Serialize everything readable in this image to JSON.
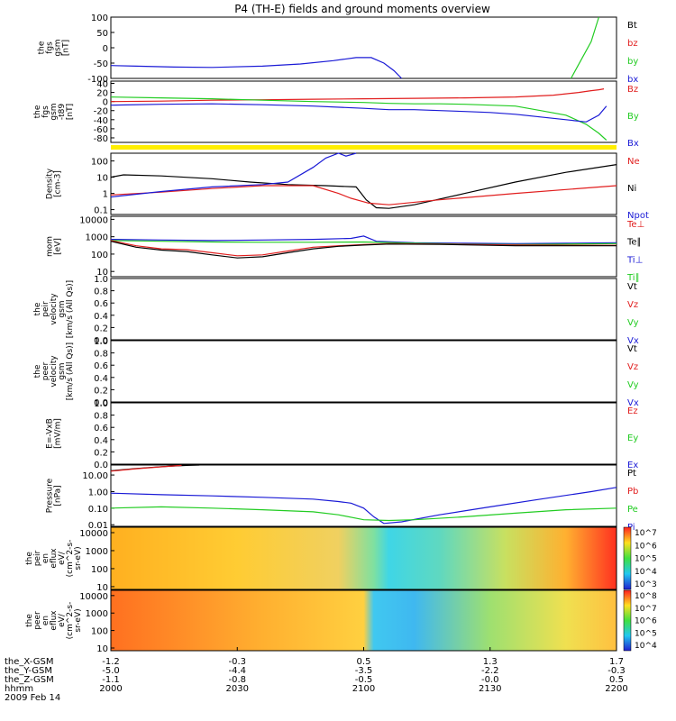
{
  "title": "P4 (TH-E) fields and ground moments overview",
  "colors": {
    "black": "#000000",
    "red": "#e11e1e",
    "green": "#22cc22",
    "blue": "#1a1ad6",
    "yellow": "#ffee00"
  },
  "chart_data": [
    {
      "type": "line",
      "ylabel": [
        "the",
        "fgs",
        "gsm",
        "[nT]"
      ],
      "yticks": [
        "100",
        "50",
        "0",
        "-50",
        "-100"
      ],
      "ylim": [
        -100,
        100
      ],
      "legend": [
        {
          "label": "Bt",
          "color": "#000000"
        },
        {
          "label": "bz",
          "color": "#e11e1e"
        },
        {
          "label": "by",
          "color": "#22cc22"
        },
        {
          "label": "bx",
          "color": "#1a1ad6"
        }
      ],
      "series": [
        {
          "color": "#1a1ad6",
          "x": [
            2000,
            2010,
            2025,
            2040,
            2060,
            2075,
            2088,
            2097,
            2103,
            2108,
            2112,
            2115
          ],
          "y": [
            -58,
            -60,
            -63,
            -64,
            -60,
            -53,
            -42,
            -32,
            -32,
            -50,
            -75,
            -100
          ]
        },
        {
          "color": "#22cc22",
          "x": [
            2182,
            2186,
            2190,
            2193
          ],
          "y": [
            -100,
            -40,
            20,
            100
          ]
        }
      ]
    },
    {
      "type": "line",
      "ylabel": [
        "the",
        "fgs",
        "gsm",
        "-t89",
        "[nT]"
      ],
      "yticks": [
        "40",
        "20",
        "0",
        "-20",
        "-40",
        "-60",
        "-80"
      ],
      "ylim": [
        -90,
        45
      ],
      "legend": [
        {
          "label": "Bz",
          "color": "#e11e1e"
        },
        {
          "label": "By",
          "color": "#22cc22"
        },
        {
          "label": "Bx",
          "color": "#1a1ad6"
        }
      ],
      "series": [
        {
          "color": "#e11e1e",
          "x": [
            2000,
            2020,
            2040,
            2060,
            2080,
            2100,
            2120,
            2140,
            2160,
            2175,
            2185,
            2190,
            2193,
            2195
          ],
          "y": [
            0,
            1,
            3,
            4,
            5,
            6,
            7,
            8,
            10,
            14,
            20,
            24,
            26,
            28
          ]
        },
        {
          "color": "#22cc22",
          "x": [
            2000,
            2020,
            2040,
            2060,
            2080,
            2100,
            2110,
            2120,
            2130,
            2140,
            2150,
            2160,
            2170,
            2180,
            2188,
            2193,
            2196
          ],
          "y": [
            10,
            8,
            6,
            3,
            0,
            -2,
            -4,
            -5,
            -5,
            -6,
            -8,
            -10,
            -20,
            -30,
            -50,
            -70,
            -85
          ]
        },
        {
          "color": "#1a1ad6",
          "x": [
            2000,
            2020,
            2040,
            2060,
            2080,
            2100,
            2110,
            2120,
            2130,
            2140,
            2150,
            2160,
            2170,
            2180,
            2188,
            2193,
            2196
          ],
          "y": [
            -8,
            -6,
            -5,
            -7,
            -10,
            -15,
            -18,
            -18,
            -20,
            -22,
            -24,
            -28,
            -34,
            -40,
            -45,
            -30,
            -10
          ]
        }
      ]
    },
    {
      "type": "line",
      "ylabel": [
        "Density",
        "[cm-3]"
      ],
      "yticks": [
        "100",
        "10",
        "1",
        "0.1"
      ],
      "ylog": true,
      "ylim": [
        0.05,
        300
      ],
      "legend": [
        {
          "label": "Ne",
          "color": "#e11e1e"
        },
        {
          "label": "Ni",
          "color": "#000000"
        },
        {
          "label": "Npot",
          "color": "#1a1ad6"
        }
      ],
      "series": [
        {
          "color": "#000000",
          "x": [
            2000,
            2005,
            2020,
            2040,
            2055,
            2070,
            2085,
            2097,
            2101,
            2105,
            2110,
            2120,
            2140,
            2160,
            2180,
            2200
          ],
          "y": [
            10,
            14,
            12,
            8,
            5,
            3.5,
            3,
            2.5,
            0.4,
            0.13,
            0.12,
            0.2,
            1,
            5,
            20,
            60
          ]
        },
        {
          "color": "#e11e1e",
          "x": [
            2000,
            2020,
            2040,
            2060,
            2080,
            2090,
            2095,
            2102,
            2110,
            2130,
            2160,
            2200
          ],
          "y": [
            0.8,
            1.2,
            2,
            3,
            3,
            1,
            0.5,
            0.25,
            0.2,
            0.4,
            1,
            3
          ]
        },
        {
          "color": "#1a1ad6",
          "x": [
            2000,
            2020,
            2040,
            2060,
            2070,
            2080,
            2085,
            2090,
            2093,
            2097
          ],
          "y": [
            0.6,
            1.3,
            2.5,
            3.5,
            5,
            40,
            150,
            300,
            200,
            400
          ]
        }
      ]
    },
    {
      "type": "line",
      "ylabel": [
        "mom",
        "[eV]"
      ],
      "yticks": [
        "10000",
        "1000",
        "100",
        "10"
      ],
      "ylog": true,
      "ylim": [
        5,
        15000
      ],
      "legend": [
        {
          "label": "Te⊥",
          "color": "#e11e1e"
        },
        {
          "label": "Te∥",
          "color": "#000000"
        },
        {
          "label": "Ti⊥",
          "color": "#1a1ad6"
        },
        {
          "label": "Ti∥",
          "color": "#22cc22"
        }
      ],
      "series": [
        {
          "color": "#1a1ad6",
          "x": [
            2000,
            2020,
            2040,
            2060,
            2080,
            2095,
            2100,
            2105,
            2120,
            2140,
            2160,
            2180,
            2200
          ],
          "y": [
            700,
            650,
            600,
            650,
            700,
            800,
            1100,
            550,
            450,
            420,
            400,
            420,
            450
          ]
        },
        {
          "color": "#22cc22",
          "x": [
            2000,
            2020,
            2040,
            2060,
            2080,
            2100,
            2120,
            2140,
            2160,
            2180,
            2200
          ],
          "y": [
            600,
            550,
            500,
            480,
            480,
            500,
            420,
            380,
            350,
            380,
            400
          ]
        },
        {
          "color": "#e11e1e",
          "x": [
            2000,
            2010,
            2020,
            2030,
            2040,
            2050,
            2060,
            2070,
            2080,
            2090,
            2100,
            2110,
            2130,
            2160,
            2200
          ],
          "y": [
            600,
            300,
            200,
            180,
            120,
            80,
            90,
            150,
            250,
            300,
            350,
            400,
            380,
            330,
            320
          ]
        },
        {
          "color": "#000000",
          "x": [
            2000,
            2010,
            2020,
            2030,
            2040,
            2050,
            2060,
            2070,
            2080,
            2090,
            2100,
            2110,
            2130,
            2160,
            2200
          ],
          "y": [
            550,
            250,
            170,
            140,
            90,
            60,
            70,
            120,
            200,
            280,
            330,
            380,
            360,
            300,
            300
          ]
        }
      ]
    },
    {
      "type": "line",
      "ylabel": [
        "the",
        "peir",
        "velocity",
        "gsm",
        "[km/s (All Qs)]"
      ],
      "yticks": [
        "1.0",
        "0.8",
        "0.6",
        "0.4",
        "0.2",
        "0.0"
      ],
      "ylim": [
        0,
        1
      ],
      "legend": [
        {
          "label": "Vt",
          "color": "#000000"
        },
        {
          "label": "Vz",
          "color": "#e11e1e"
        },
        {
          "label": "Vy",
          "color": "#22cc22"
        },
        {
          "label": "Vx",
          "color": "#1a1ad6"
        }
      ],
      "series": []
    },
    {
      "type": "line",
      "ylabel": [
        "the",
        "peer",
        "velocity",
        "gsm",
        "[km/s (All Qs)]"
      ],
      "yticks": [
        "1.0",
        "0.8",
        "0.6",
        "0.4",
        "0.2",
        "0.0"
      ],
      "ylim": [
        0,
        1
      ],
      "legend": [
        {
          "label": "Vt",
          "color": "#000000"
        },
        {
          "label": "Vz",
          "color": "#e11e1e"
        },
        {
          "label": "Vy",
          "color": "#22cc22"
        },
        {
          "label": "Vx",
          "color": "#1a1ad6"
        }
      ],
      "series": []
    },
    {
      "type": "line",
      "ylabel": [
        "E=-VxB",
        "[mV/m]"
      ],
      "yticks": [
        "1.0",
        "0.8",
        "0.6",
        "0.4",
        "0.2",
        "0.0"
      ],
      "ylim": [
        0,
        1
      ],
      "legend": [
        {
          "label": "Ez",
          "color": "#e11e1e"
        },
        {
          "label": "Ey",
          "color": "#22cc22"
        },
        {
          "label": "Ex",
          "color": "#1a1ad6"
        }
      ],
      "series": []
    },
    {
      "type": "line",
      "ylabel": [
        "Pressure",
        "[nPa]"
      ],
      "yticks": [
        "10.00",
        "1.00",
        "0.10",
        "0.01"
      ],
      "ylog": true,
      "ylim": [
        0.008,
        40
      ],
      "legend": [
        {
          "label": "Pt",
          "color": "#000000"
        },
        {
          "label": "Pb",
          "color": "#e11e1e"
        },
        {
          "label": "Pe",
          "color": "#22cc22"
        },
        {
          "label": "Pi",
          "color": "#1a1ad6"
        }
      ],
      "series": [
        {
          "color": "#000000",
          "x": [
            2000,
            2010,
            2020,
            2030,
            2035
          ],
          "y": [
            18,
            25,
            32,
            38,
            40
          ]
        },
        {
          "color": "#e11e1e",
          "x": [
            2000,
            2010,
            2020,
            2028
          ],
          "y": [
            17,
            24,
            31,
            38
          ]
        },
        {
          "color": "#1a1ad6",
          "x": [
            2000,
            2020,
            2040,
            2060,
            2080,
            2090,
            2095,
            2100,
            2104,
            2108,
            2115,
            2130,
            2150,
            2170,
            2190,
            2200
          ],
          "y": [
            0.8,
            0.65,
            0.55,
            0.45,
            0.35,
            0.25,
            0.2,
            0.1,
            0.03,
            0.012,
            0.015,
            0.04,
            0.12,
            0.35,
            1.0,
            1.8
          ]
        },
        {
          "color": "#22cc22",
          "x": [
            2000,
            2020,
            2040,
            2060,
            2080,
            2090,
            2100,
            2110,
            2120,
            2140,
            2160,
            2180,
            2200
          ],
          "y": [
            0.1,
            0.12,
            0.1,
            0.08,
            0.06,
            0.04,
            0.02,
            0.018,
            0.02,
            0.03,
            0.05,
            0.08,
            0.1
          ]
        }
      ]
    },
    {
      "type": "heatmap",
      "ylabel": [
        "the",
        "peir",
        "en",
        "eflux",
        "eV/",
        "(cm^2-s-",
        "sr-eV)"
      ],
      "yticks": [
        "10000",
        "1000",
        "100",
        "10"
      ],
      "ylog": true,
      "ylim": [
        7,
        20000
      ],
      "colorbar_ticks": [
        "10^7",
        "10^6",
        "10^5",
        "10^4",
        "10^3"
      ]
    },
    {
      "type": "heatmap",
      "ylabel": [
        "the",
        "peer",
        "en",
        "eflux",
        "eV/",
        "(cm^2-s-",
        "sr-eV)"
      ],
      "yticks": [
        "10000",
        "1000",
        "100",
        "10"
      ],
      "ylog": true,
      "ylim": [
        7,
        20000
      ],
      "colorbar_ticks": [
        "10^8",
        "10^7",
        "10^6",
        "10^5",
        "10^4"
      ]
    }
  ],
  "xaxis": {
    "xlim": [
      2000,
      2200
    ],
    "rows": [
      {
        "label": "the_X-GSM",
        "values": [
          "-1.2",
          "-0.3",
          "0.5",
          "1.3",
          "1.7"
        ]
      },
      {
        "label": "the_Y-GSM",
        "values": [
          "-5.0",
          "-4.4",
          "-3.5",
          "-2.2",
          "-0.3"
        ]
      },
      {
        "label": "the_Z-GSM",
        "values": [
          "-1.1",
          "-0.8",
          "-0.5",
          "-0.0",
          "0.5"
        ]
      },
      {
        "label": "hhmm",
        "values": [
          "2000",
          "2030",
          "2100",
          "2130",
          "2200"
        ]
      }
    ],
    "date_label": "2009 Feb 14"
  }
}
